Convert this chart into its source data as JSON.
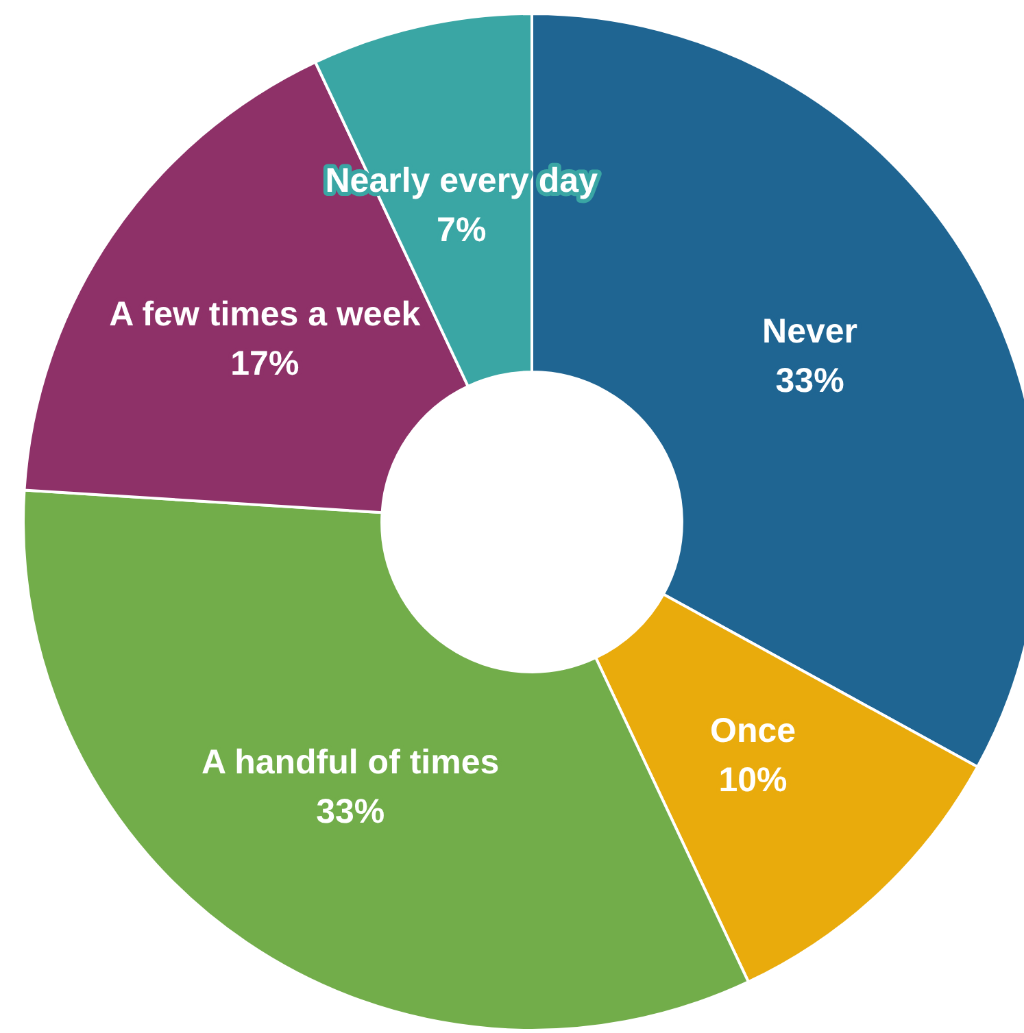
{
  "chart_data": {
    "type": "donut",
    "categories": [
      "Never",
      "Once",
      "A handful of times",
      "A few times a week",
      "Nearly every day"
    ],
    "values": [
      33,
      10,
      33,
      17,
      7
    ],
    "colors": [
      "#1f6592",
      "#e9ab0c",
      "#72ad4a",
      "#8e3168",
      "#3aa6a4"
    ],
    "value_labels": [
      "33%",
      "10%",
      "33%",
      "17%",
      "7%"
    ],
    "legend": false
  }
}
